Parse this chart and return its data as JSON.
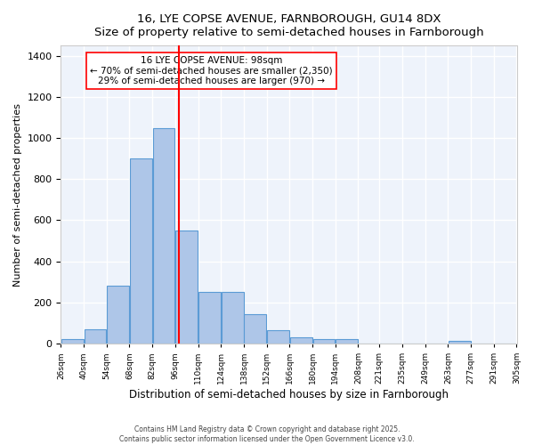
{
  "title": "16, LYE COPSE AVENUE, FARNBOROUGH, GU14 8DX",
  "subtitle": "Size of property relative to semi-detached houses in Farnborough",
  "xlabel": "Distribution of semi-detached houses by size in Farnborough",
  "ylabel": "Number of semi-detached properties",
  "bar_color": "#aec6e8",
  "bar_edge_color": "#5b9bd5",
  "background_color": "#eef3fb",
  "grid_color": "#ffffff",
  "vline_x": 98,
  "vline_color": "red",
  "annotation_title": "16 LYE COPSE AVENUE: 98sqm",
  "annotation_line1": "← 70% of semi-detached houses are smaller (2,350)",
  "annotation_line2": "29% of semi-detached houses are larger (970) →",
  "footnote1": "Contains HM Land Registry data © Crown copyright and database right 2025.",
  "footnote2": "Contains public sector information licensed under the Open Government Licence v3.0.",
  "bins": [
    26,
    40,
    54,
    68,
    82,
    96,
    110,
    124,
    138,
    152,
    166,
    180,
    194,
    208,
    221,
    235,
    249,
    263,
    277,
    291,
    305
  ],
  "bin_labels": [
    "26sqm",
    "40sqm",
    "54sqm",
    "68sqm",
    "82sqm",
    "96sqm",
    "110sqm",
    "124sqm",
    "138sqm",
    "152sqm",
    "166sqm",
    "180sqm",
    "194sqm",
    "208sqm",
    "221sqm",
    "235sqm",
    "249sqm",
    "263sqm",
    "277sqm",
    "291sqm",
    "305sqm"
  ],
  "values": [
    20,
    70,
    280,
    900,
    1050,
    550,
    250,
    250,
    145,
    65,
    30,
    20,
    20,
    0,
    0,
    0,
    0,
    15,
    0,
    0
  ],
  "ylim": [
    0,
    1450
  ]
}
